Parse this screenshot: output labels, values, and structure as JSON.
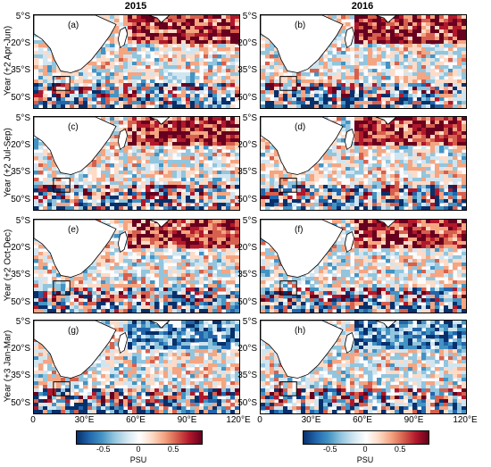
{
  "columns": [
    "2015",
    "2016"
  ],
  "rows": [
    "Year (+2 Apr-Jun)",
    "Year (+2 Jul-Sep)",
    "Year (+2 Oct-Dec)",
    "Year (+3 Jan-Mar)"
  ],
  "panel_labels": [
    "(a)",
    "(b)",
    "(c)",
    "(d)",
    "(e)",
    "(f)",
    "(g)",
    "(h)"
  ],
  "lat_ticks": [
    "5°S",
    "20°S",
    "35°S",
    "50°S"
  ],
  "lon_ticks": [
    "0",
    "30°E",
    "60°E",
    "90°E",
    "120°E"
  ],
  "colorbar": {
    "ticks": [
      "-0.5",
      "0",
      "0.5"
    ],
    "unit": "PSU",
    "colors": [
      "#08306b",
      "#2166ac",
      "#4393c3",
      "#92c5de",
      "#d1e5f0",
      "#ffffff",
      "#fddbc7",
      "#f4a582",
      "#d6604d",
      "#b2182b",
      "#67001f"
    ]
  }
}
